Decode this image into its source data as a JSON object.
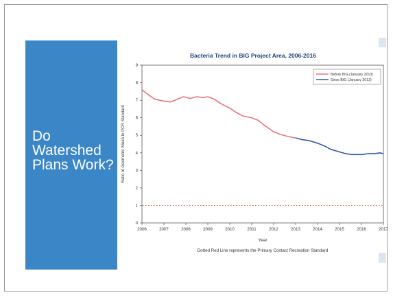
{
  "slide": {
    "title_lines": [
      "Do",
      "Watershed",
      "Plans Work?"
    ],
    "accent_color": "#3a86c6"
  },
  "chart_data": {
    "type": "line",
    "title": "Bacteria Trend in BIG Project Area, 2006-2016",
    "xlabel": "Year",
    "ylabel": "Ratio of Geometric Mean to PCR Standard",
    "caption": "Dotted Red Line represents the Primary Contact Recreation Standard",
    "xlim": [
      2006,
      2017
    ],
    "ylim": [
      0,
      9
    ],
    "x_ticks": [
      2006,
      2007,
      2008,
      2009,
      2010,
      2011,
      2012,
      2013,
      2014,
      2015,
      2016,
      2017
    ],
    "y_ticks": [
      0,
      1,
      2,
      3,
      4,
      5,
      6,
      7,
      8,
      9
    ],
    "grid": false,
    "legend_position": "top-right",
    "reference_line": {
      "y": 1,
      "style": "dotted",
      "color": "#d9534f"
    },
    "series": [
      {
        "name": "Before BIG (January 2013)",
        "color": "#e8737a",
        "x": [
          2006.0,
          2006.3,
          2006.6,
          2007.0,
          2007.3,
          2007.6,
          2007.9,
          2008.2,
          2008.5,
          2008.8,
          2009.0,
          2009.3,
          2009.6,
          2010.0,
          2010.3,
          2010.6,
          2011.0,
          2011.3,
          2011.6,
          2012.0,
          2012.3,
          2012.6,
          2013.0
        ],
        "y": [
          7.6,
          7.3,
          7.05,
          6.95,
          6.9,
          7.05,
          7.2,
          7.1,
          7.2,
          7.15,
          7.2,
          7.05,
          6.8,
          6.55,
          6.3,
          6.1,
          6.0,
          5.85,
          5.55,
          5.2,
          5.05,
          4.95,
          4.85
        ]
      },
      {
        "name": "Since BIG (January 2013)",
        "color": "#2e58a6",
        "x": [
          2013.0,
          2013.3,
          2013.6,
          2014.0,
          2014.3,
          2014.6,
          2015.0,
          2015.3,
          2015.6,
          2016.0,
          2016.3,
          2016.6,
          2016.85,
          2017.0
        ],
        "y": [
          4.85,
          4.75,
          4.7,
          4.55,
          4.4,
          4.2,
          4.05,
          3.95,
          3.9,
          3.9,
          3.95,
          3.95,
          4.0,
          3.95
        ]
      }
    ]
  }
}
